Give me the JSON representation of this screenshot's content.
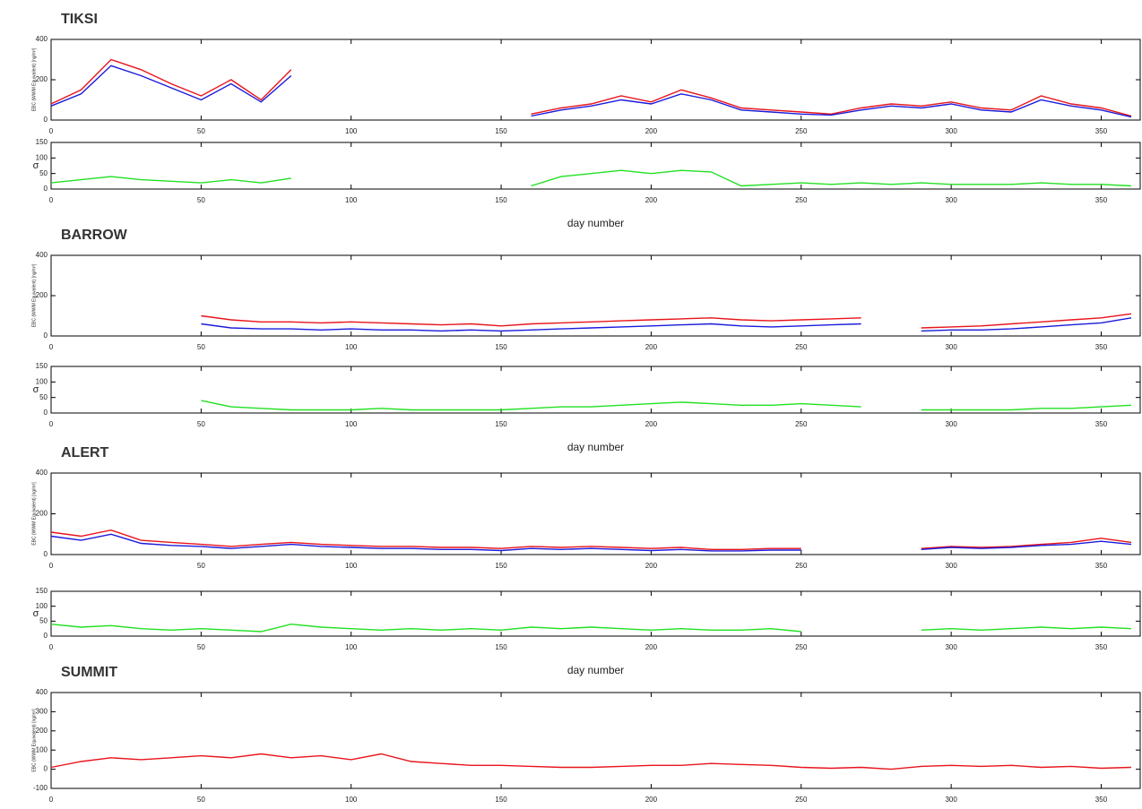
{
  "chart_data": [
    {
      "type": "line",
      "title": "TIKSI",
      "y_label": "EBC (WWM Equivalent) [ng/m³]",
      "x": [
        0,
        10,
        20,
        30,
        40,
        50,
        60,
        70,
        80,
        90,
        100,
        110,
        120,
        130,
        140,
        150,
        160,
        170,
        180,
        190,
        200,
        210,
        220,
        230,
        240,
        250,
        260,
        270,
        280,
        290,
        300,
        310,
        320,
        330,
        340,
        350,
        360
      ],
      "xlim": [
        0,
        363
      ],
      "ylim": [
        0,
        400
      ],
      "xticks": [
        0,
        50,
        100,
        150,
        200,
        250,
        300,
        350
      ],
      "yticks": [
        0,
        200,
        400
      ],
      "series": [
        {
          "color": "#e8141b",
          "values": [
            80,
            150,
            300,
            250,
            180,
            120,
            200,
            100,
            250,
            null,
            null,
            null,
            null,
            null,
            null,
            null,
            30,
            60,
            80,
            120,
            90,
            150,
            110,
            60,
            50,
            40,
            30,
            60,
            80,
            70,
            90,
            60,
            50,
            120,
            80,
            60,
            20
          ]
        },
        {
          "color": "#1a1adc",
          "values": [
            70,
            130,
            270,
            220,
            160,
            100,
            180,
            90,
            220,
            null,
            null,
            null,
            null,
            null,
            null,
            null,
            20,
            50,
            70,
            100,
            80,
            130,
            100,
            50,
            40,
            30,
            25,
            50,
            70,
            60,
            80,
            50,
            40,
            100,
            70,
            50,
            15
          ]
        }
      ]
    },
    {
      "type": "line",
      "y_label": "σ",
      "x_label": "day number",
      "x": [
        0,
        10,
        20,
        30,
        40,
        50,
        60,
        70,
        80,
        90,
        100,
        110,
        120,
        130,
        140,
        150,
        160,
        170,
        180,
        190,
        200,
        210,
        220,
        230,
        240,
        250,
        260,
        270,
        280,
        290,
        300,
        310,
        320,
        330,
        340,
        350,
        360
      ],
      "xlim": [
        0,
        363
      ],
      "ylim": [
        0,
        150
      ],
      "xticks": [
        0,
        50,
        100,
        150,
        200,
        250,
        300,
        350
      ],
      "yticks": [
        0,
        50,
        100,
        150
      ],
      "series": [
        {
          "color": "#22e022",
          "values": [
            20,
            30,
            40,
            30,
            25,
            20,
            30,
            20,
            35,
            null,
            null,
            null,
            null,
            null,
            null,
            null,
            10,
            40,
            50,
            60,
            50,
            60,
            55,
            10,
            15,
            20,
            15,
            20,
            15,
            20,
            15,
            15,
            15,
            20,
            15,
            15,
            10
          ]
        }
      ]
    },
    {
      "type": "line",
      "title": "BARROW",
      "y_label": "EBC (WWM Equivalent) [ng/m³]",
      "x": [
        0,
        10,
        20,
        30,
        40,
        50,
        60,
        70,
        80,
        90,
        100,
        110,
        120,
        130,
        140,
        150,
        160,
        170,
        180,
        190,
        200,
        210,
        220,
        230,
        240,
        250,
        260,
        270,
        280,
        290,
        300,
        310,
        320,
        330,
        340,
        350,
        360
      ],
      "xlim": [
        0,
        363
      ],
      "ylim": [
        0,
        400
      ],
      "xticks": [
        0,
        50,
        100,
        150,
        200,
        250,
        300,
        350
      ],
      "yticks": [
        0,
        200,
        400
      ],
      "series": [
        {
          "color": "#e8141b",
          "values": [
            null,
            null,
            null,
            null,
            null,
            100,
            80,
            70,
            70,
            65,
            70,
            65,
            60,
            55,
            60,
            50,
            60,
            65,
            70,
            75,
            80,
            85,
            90,
            80,
            75,
            80,
            85,
            90,
            null,
            40,
            45,
            50,
            60,
            70,
            80,
            90,
            110
          ]
        },
        {
          "color": "#1a1adc",
          "values": [
            null,
            null,
            null,
            null,
            null,
            60,
            40,
            35,
            35,
            30,
            35,
            30,
            30,
            25,
            30,
            25,
            30,
            35,
            40,
            45,
            50,
            55,
            60,
            50,
            45,
            50,
            55,
            60,
            null,
            25,
            30,
            30,
            35,
            45,
            55,
            65,
            90
          ]
        }
      ]
    },
    {
      "type": "line",
      "y_label": "σ",
      "x_label": "day number",
      "x": [
        0,
        10,
        20,
        30,
        40,
        50,
        60,
        70,
        80,
        90,
        100,
        110,
        120,
        130,
        140,
        150,
        160,
        170,
        180,
        190,
        200,
        210,
        220,
        230,
        240,
        250,
        260,
        270,
        280,
        290,
        300,
        310,
        320,
        330,
        340,
        350,
        360
      ],
      "xlim": [
        0,
        363
      ],
      "ylim": [
        0,
        150
      ],
      "xticks": [
        0,
        50,
        100,
        150,
        200,
        250,
        300,
        350
      ],
      "yticks": [
        0,
        50,
        100,
        150
      ],
      "series": [
        {
          "color": "#22e022",
          "values": [
            null,
            null,
            null,
            null,
            null,
            40,
            20,
            15,
            10,
            10,
            10,
            15,
            10,
            10,
            10,
            10,
            15,
            20,
            20,
            25,
            30,
            35,
            30,
            25,
            25,
            30,
            25,
            20,
            null,
            10,
            10,
            10,
            10,
            15,
            15,
            20,
            25
          ]
        }
      ]
    },
    {
      "type": "line",
      "title": "ALERT",
      "y_label": "EBC (WWM Equivalent) [ng/m³]",
      "x": [
        0,
        10,
        20,
        30,
        40,
        50,
        60,
        70,
        80,
        90,
        100,
        110,
        120,
        130,
        140,
        150,
        160,
        170,
        180,
        190,
        200,
        210,
        220,
        230,
        240,
        250,
        260,
        270,
        280,
        290,
        300,
        310,
        320,
        330,
        340,
        350,
        360
      ],
      "xlim": [
        0,
        363
      ],
      "ylim": [
        0,
        400
      ],
      "xticks": [
        0,
        50,
        100,
        150,
        200,
        250,
        300,
        350
      ],
      "yticks": [
        0,
        200,
        400
      ],
      "series": [
        {
          "color": "#e8141b",
          "values": [
            110,
            90,
            120,
            70,
            60,
            50,
            40,
            50,
            60,
            50,
            45,
            40,
            40,
            35,
            35,
            30,
            40,
            35,
            40,
            35,
            30,
            35,
            25,
            25,
            30,
            30,
            null,
            null,
            null,
            30,
            40,
            35,
            40,
            50,
            60,
            80,
            60
          ]
        },
        {
          "color": "#1a1adc",
          "values": [
            90,
            70,
            100,
            55,
            45,
            40,
            30,
            40,
            50,
            40,
            35,
            30,
            30,
            25,
            25,
            20,
            30,
            25,
            30,
            25,
            20,
            25,
            18,
            18,
            22,
            22,
            null,
            null,
            null,
            25,
            35,
            30,
            35,
            45,
            50,
            65,
            50
          ]
        }
      ]
    },
    {
      "type": "line",
      "y_label": "σ",
      "x_label": "day number",
      "x": [
        0,
        10,
        20,
        30,
        40,
        50,
        60,
        70,
        80,
        90,
        100,
        110,
        120,
        130,
        140,
        150,
        160,
        170,
        180,
        190,
        200,
        210,
        220,
        230,
        240,
        250,
        260,
        270,
        280,
        290,
        300,
        310,
        320,
        330,
        340,
        350,
        360
      ],
      "xlim": [
        0,
        363
      ],
      "ylim": [
        0,
        150
      ],
      "xticks": [
        0,
        50,
        100,
        150,
        200,
        250,
        300,
        350
      ],
      "yticks": [
        0,
        50,
        100,
        150
      ],
      "series": [
        {
          "color": "#22e022",
          "values": [
            40,
            30,
            35,
            25,
            20,
            25,
            20,
            15,
            40,
            30,
            25,
            20,
            25,
            20,
            25,
            20,
            30,
            25,
            30,
            25,
            20,
            25,
            20,
            20,
            25,
            15,
            null,
            null,
            null,
            20,
            25,
            20,
            25,
            30,
            25,
            30,
            25
          ]
        }
      ]
    },
    {
      "type": "line",
      "title": "SUMMIT",
      "y_label": "EBC (WWM Equivalent) [ng/m³]",
      "x": [
        0,
        10,
        20,
        30,
        40,
        50,
        60,
        70,
        80,
        90,
        100,
        110,
        120,
        130,
        140,
        150,
        160,
        170,
        180,
        190,
        200,
        210,
        220,
        230,
        240,
        250,
        260,
        270,
        280,
        290,
        300,
        310,
        320,
        330,
        340,
        350,
        360
      ],
      "xlim": [
        0,
        363
      ],
      "ylim": [
        -100,
        400
      ],
      "xticks": [
        0,
        50,
        100,
        150,
        200,
        250,
        300,
        350
      ],
      "yticks": [
        -100,
        0,
        100,
        200,
        300,
        400
      ],
      "series": [
        {
          "color": "#e8141b",
          "values": [
            10,
            40,
            60,
            50,
            60,
            70,
            60,
            80,
            60,
            70,
            50,
            80,
            40,
            30,
            20,
            20,
            15,
            10,
            10,
            15,
            20,
            20,
            30,
            25,
            20,
            10,
            5,
            10,
            0,
            15,
            20,
            15,
            20,
            10,
            15,
            5,
            10
          ]
        }
      ]
    }
  ]
}
